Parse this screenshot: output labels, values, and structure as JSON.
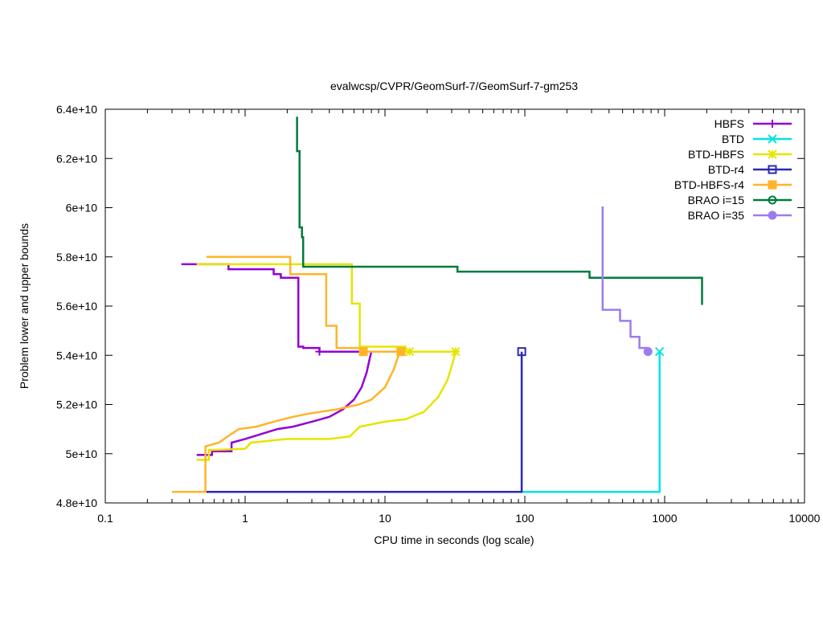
{
  "chart_data": {
    "type": "line",
    "title": "evalwcsp/CVPR/GeomSurf-7/GeomSurf-7-gm253",
    "xlabel": "CPU time in seconds (log scale)",
    "ylabel": "Problem lower and upper bounds",
    "x_scale": "log",
    "xlim": [
      0.1,
      10000
    ],
    "ylim": [
      48000000000,
      64000000000
    ],
    "x_ticks": [
      {
        "value": 0.1,
        "label": "0.1"
      },
      {
        "value": 1,
        "label": "1"
      },
      {
        "value": 10,
        "label": "10"
      },
      {
        "value": 100,
        "label": "100"
      },
      {
        "value": 1000,
        "label": "1000"
      },
      {
        "value": 10000,
        "label": "10000"
      }
    ],
    "y_ticks": [
      {
        "value": 48000000000,
        "label": "4.8e+10"
      },
      {
        "value": 50000000000,
        "label": "5e+10"
      },
      {
        "value": 52000000000,
        "label": "5.2e+10"
      },
      {
        "value": 54000000000,
        "label": "5.4e+10"
      },
      {
        "value": 56000000000,
        "label": "5.6e+10"
      },
      {
        "value": 58000000000,
        "label": "5.8e+10"
      },
      {
        "value": 60000000000,
        "label": "6e+10"
      },
      {
        "value": 62000000000,
        "label": "6.2e+10"
      },
      {
        "value": 64000000000,
        "label": "6.4e+10"
      }
    ],
    "grid": false,
    "legend_position": "top-right",
    "series": [
      {
        "name": "HBFS",
        "color": "#9400d3",
        "marker": "plus",
        "marker_points": [
          [
            3.4,
            54150000000
          ]
        ],
        "upper": [
          [
            0.35,
            57700000000
          ],
          [
            0.76,
            57700000000
          ],
          [
            0.76,
            57500000000
          ],
          [
            1.6,
            57500000000
          ],
          [
            1.6,
            57300000000
          ],
          [
            1.8,
            57300000000
          ],
          [
            1.8,
            57150000000
          ],
          [
            2.4,
            57150000000
          ],
          [
            2.4,
            54350000000
          ],
          [
            2.6,
            54350000000
          ],
          [
            2.6,
            54300000000
          ],
          [
            3.4,
            54300000000
          ],
          [
            3.4,
            54150000000
          ],
          [
            7.9,
            54150000000
          ]
        ],
        "lower": [
          [
            0.45,
            49950000000
          ],
          [
            0.58,
            49950000000
          ],
          [
            0.58,
            50100000000
          ],
          [
            0.8,
            50100000000
          ],
          [
            0.8,
            50450000000
          ],
          [
            1.0,
            50600000000
          ],
          [
            1.3,
            50800000000
          ],
          [
            1.7,
            51000000000
          ],
          [
            2.2,
            51100000000
          ],
          [
            3.0,
            51300000000
          ],
          [
            4.0,
            51500000000
          ],
          [
            5.0,
            51800000000
          ],
          [
            6.0,
            52200000000
          ],
          [
            6.8,
            52700000000
          ],
          [
            7.4,
            53300000000
          ],
          [
            7.8,
            53900000000
          ],
          [
            8.0,
            54150000000
          ]
        ]
      },
      {
        "name": "BTD",
        "color": "#00e5e5",
        "marker": "cross",
        "marker_points": [
          [
            920,
            54150000000
          ]
        ],
        "upper": [
          [
            920,
            54150000000
          ]
        ],
        "lower": [
          [
            0.3,
            48450000000
          ],
          [
            920,
            48450000000
          ],
          [
            920,
            54150000000
          ]
        ]
      },
      {
        "name": "BTD-HBFS",
        "color": "#e5e500",
        "marker": "star",
        "marker_points": [
          [
            15,
            54150000000
          ],
          [
            32,
            54150000000
          ]
        ],
        "upper": [
          [
            0.45,
            57700000000
          ],
          [
            5.8,
            57700000000
          ],
          [
            5.8,
            56100000000
          ],
          [
            6.6,
            56100000000
          ],
          [
            6.6,
            54350000000
          ],
          [
            14,
            54350000000
          ],
          [
            14,
            54150000000
          ],
          [
            32,
            54150000000
          ]
        ],
        "lower": [
          [
            0.45,
            49750000000
          ],
          [
            0.55,
            49750000000
          ],
          [
            0.55,
            50150000000
          ],
          [
            1.0,
            50200000000
          ],
          [
            1.1,
            50450000000
          ],
          [
            2.0,
            50600000000
          ],
          [
            4.0,
            50600000000
          ],
          [
            5.6,
            50700000000
          ],
          [
            6.6,
            51100000000
          ],
          [
            10,
            51300000000
          ],
          [
            14,
            51400000000
          ],
          [
            19,
            51700000000
          ],
          [
            24,
            52300000000
          ],
          [
            28,
            53000000000
          ],
          [
            30.5,
            53700000000
          ],
          [
            32,
            54150000000
          ]
        ]
      },
      {
        "name": "BTD-r4",
        "color": "#2929b3",
        "marker": "square-open",
        "marker_points": [
          [
            95,
            54150000000
          ]
        ],
        "upper": [
          [
            95,
            54150000000
          ]
        ],
        "lower": [
          [
            0.52,
            48450000000
          ],
          [
            95,
            48450000000
          ],
          [
            95,
            54150000000
          ]
        ]
      },
      {
        "name": "BTD-HBFS-r4",
        "color": "#ffb428",
        "marker": "square-filled",
        "marker_points": [
          [
            7.0,
            54150000000
          ],
          [
            13,
            54150000000
          ]
        ],
        "upper": [
          [
            0.53,
            58000000000
          ],
          [
            2.1,
            58000000000
          ],
          [
            2.1,
            57300000000
          ],
          [
            3.8,
            57300000000
          ],
          [
            3.8,
            55200000000
          ],
          [
            4.5,
            55200000000
          ],
          [
            4.5,
            54300000000
          ],
          [
            6.7,
            54300000000
          ],
          [
            6.7,
            54150000000
          ],
          [
            13,
            54150000000
          ]
        ],
        "lower": [
          [
            0.3,
            48450000000
          ],
          [
            0.52,
            48450000000
          ],
          [
            0.52,
            50300000000
          ],
          [
            0.65,
            50450000000
          ],
          [
            0.75,
            50700000000
          ],
          [
            0.9,
            51000000000
          ],
          [
            1.2,
            51100000000
          ],
          [
            1.6,
            51300000000
          ],
          [
            2.2,
            51500000000
          ],
          [
            3.0,
            51650000000
          ],
          [
            4.5,
            51800000000
          ],
          [
            6.5,
            52000000000
          ],
          [
            8.0,
            52200000000
          ],
          [
            10,
            52700000000
          ],
          [
            11.5,
            53400000000
          ],
          [
            12.5,
            54000000000
          ],
          [
            13,
            54150000000
          ]
        ]
      },
      {
        "name": "BRAO i=15",
        "color": "#007a3d",
        "marker": "circle-open",
        "marker_points": [],
        "upper": [
          [
            2.35,
            63700000000
          ],
          [
            2.35,
            62300000000
          ],
          [
            2.45,
            62300000000
          ],
          [
            2.45,
            59200000000
          ],
          [
            2.55,
            59200000000
          ],
          [
            2.55,
            58800000000
          ],
          [
            2.6,
            58800000000
          ],
          [
            2.6,
            57600000000
          ],
          [
            33,
            57600000000
          ],
          [
            33,
            57400000000
          ],
          [
            290,
            57400000000
          ],
          [
            290,
            57150000000
          ],
          [
            1850,
            57150000000
          ],
          [
            1850,
            56050000000
          ]
        ],
        "lower": []
      },
      {
        "name": "BRAO i=35",
        "color": "#9b7cf0",
        "marker": "circle-filled",
        "marker_points": [
          [
            760,
            54150000000
          ]
        ],
        "upper": [
          [
            360,
            60050000000
          ],
          [
            360,
            55850000000
          ],
          [
            480,
            55850000000
          ],
          [
            480,
            55400000000
          ],
          [
            570,
            55400000000
          ],
          [
            570,
            54750000000
          ],
          [
            660,
            54750000000
          ],
          [
            660,
            54300000000
          ],
          [
            760,
            54300000000
          ],
          [
            760,
            54150000000
          ]
        ],
        "lower": []
      }
    ]
  }
}
